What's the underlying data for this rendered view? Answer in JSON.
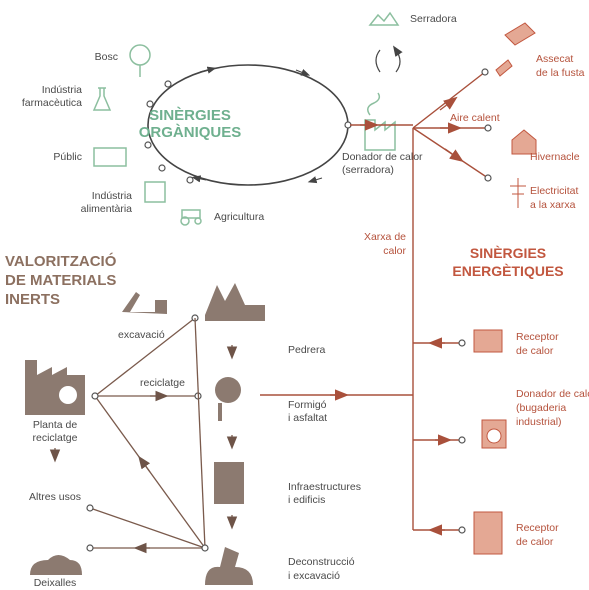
{
  "organic": {
    "heading": [
      "SINÈRGIES",
      "ORGÀNIQUES"
    ],
    "sources": {
      "forest": [
        "Bosc"
      ],
      "pharma": [
        "Indústria",
        "farmacèutica"
      ],
      "public": [
        "Públic"
      ],
      "food": [
        "Indústria",
        "alimentària"
      ],
      "agriculture": [
        "Agricultura"
      ],
      "sawmill": [
        "Serradora"
      ]
    },
    "donor": [
      "Donador de calor",
      "(serradora)"
    ]
  },
  "energy": {
    "heading": [
      "SINÈRGIES",
      "ENERGÈTIQUES"
    ],
    "network": [
      "Xarxa de",
      "calor"
    ],
    "hot_air": [
      "Aire calent"
    ],
    "uses": {
      "drying": [
        "Assecat",
        "de la fusta"
      ],
      "greenhouse": [
        "Hivernacle"
      ],
      "electricity": [
        "Electricitat",
        "a la xarxa"
      ]
    },
    "nodes": [
      [
        "Receptor",
        "de calor"
      ],
      [
        "Donador de calor",
        "(bugaderia",
        "industrial)"
      ],
      [
        "Receptor",
        "de calor"
      ]
    ]
  },
  "inerts": {
    "heading": [
      "VALORITZACIÓ",
      "DE MATERIALS",
      "INERTS"
    ],
    "excavation": [
      "excavació"
    ],
    "recycling": [
      "reciclatge"
    ],
    "quarry": [
      "Pedrera"
    ],
    "concrete": [
      "Formigó",
      "i asfaltat"
    ],
    "infrastructure": [
      "Infraestructures",
      "i edificis"
    ],
    "deconstruction": [
      "Deconstrucció",
      "i excavació"
    ],
    "plant": [
      "Planta de",
      "reciclatge"
    ],
    "other_uses": [
      "Altres usos"
    ],
    "waste": [
      "Deixalles"
    ]
  }
}
